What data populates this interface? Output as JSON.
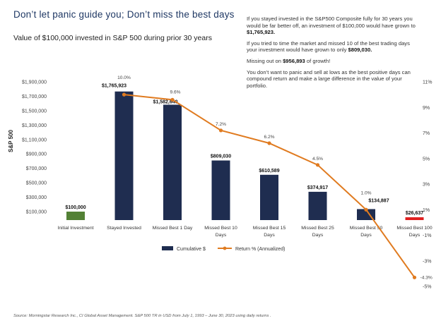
{
  "header": {
    "title": "Don’t let panic guide you; Don’t miss the best days",
    "subtitle": "Value of $100,000 invested in S&P 500 during prior 30 years"
  },
  "notes": {
    "p1_text": "If you stayed invested in the S&P500 Composite fully for 30 years you would be far better off, an investment of $100,000 would have grown to ",
    "p1_value": "$1,765,923.",
    "p2_text": "If you tried to time the market and missed 10 of the best trading days your investment would have grown to only ",
    "p2_value": "$809,030.",
    "p3_text": "Missing out on ",
    "p3_value": "$956,893",
    "p3_tail": " of growth!",
    "p4_text": "You don’t want to panic and sell at lows as the best positive days can compound return and make a large difference in the value of your portfolio."
  },
  "source": "Source: Morningstar Research Inc., CI Global Asset Management. S&P 500 TR in USD from July 1, 1993 – June 30, 2023 using daily returns .",
  "colors": {
    "bar": "#1f2d50",
    "initial_bar": "#538135",
    "last_bar": "#e02020",
    "line": "#e07b20",
    "title": "#1f3864"
  },
  "chart_data": {
    "type": "bar",
    "categories": [
      "Initial Investment",
      "Stayed Invested",
      "Missed Best 1 Day",
      "Missed Best 10 Days",
      "Missed Best 15 Days",
      "Missed Best 25 Days",
      "Missed Best 50 Days",
      "Missed Best 100 Days"
    ],
    "series": [
      {
        "name": "Cumulative $",
        "type": "bar",
        "values": [
          100000,
          1765923,
          1582640,
          809030,
          610589,
          374917,
          134887,
          26637
        ],
        "labels": [
          "$100,000",
          "$1,765,923",
          "$1,582,640",
          "$809,030",
          "$610,589",
          "$374,917",
          "$134,887",
          "$26,637"
        ]
      },
      {
        "name": "Return % (Annualized)",
        "type": "line",
        "axis": "right",
        "values": [
          null,
          10.0,
          9.6,
          7.2,
          6.2,
          4.5,
          1.0,
          -4.3
        ],
        "labels": [
          "",
          "10.0%",
          "9.6%",
          "7.2%",
          "6.2%",
          "4.5%",
          "1.0%",
          "-4.3%"
        ]
      }
    ],
    "ylabel": "S&P 500",
    "y_ticks": [
      "$100,000",
      "$300,000",
      "$500,000",
      "$700,000",
      "$900,000",
      "$1,100,000",
      "$1,300,000",
      "$1,500,000",
      "$1,700,000",
      "$1,900,000"
    ],
    "y_tick_values": [
      100000,
      300000,
      500000,
      700000,
      900000,
      1100000,
      1300000,
      1500000,
      1700000,
      1900000
    ],
    "y2_ticks": [
      "11%",
      "9%",
      "7%",
      "5%",
      "3%",
      "1%",
      "-1%",
      "-3%",
      "-5%"
    ],
    "y2_tick_values": [
      11,
      9,
      7,
      5,
      3,
      1,
      -1,
      -3,
      -5
    ],
    "ylim": [
      0,
      1900000
    ],
    "y2lim": [
      -5,
      11
    ],
    "legend": [
      "Cumulative $",
      "Return % (Annualized)"
    ],
    "legend_position": "bottom",
    "grid": false
  }
}
